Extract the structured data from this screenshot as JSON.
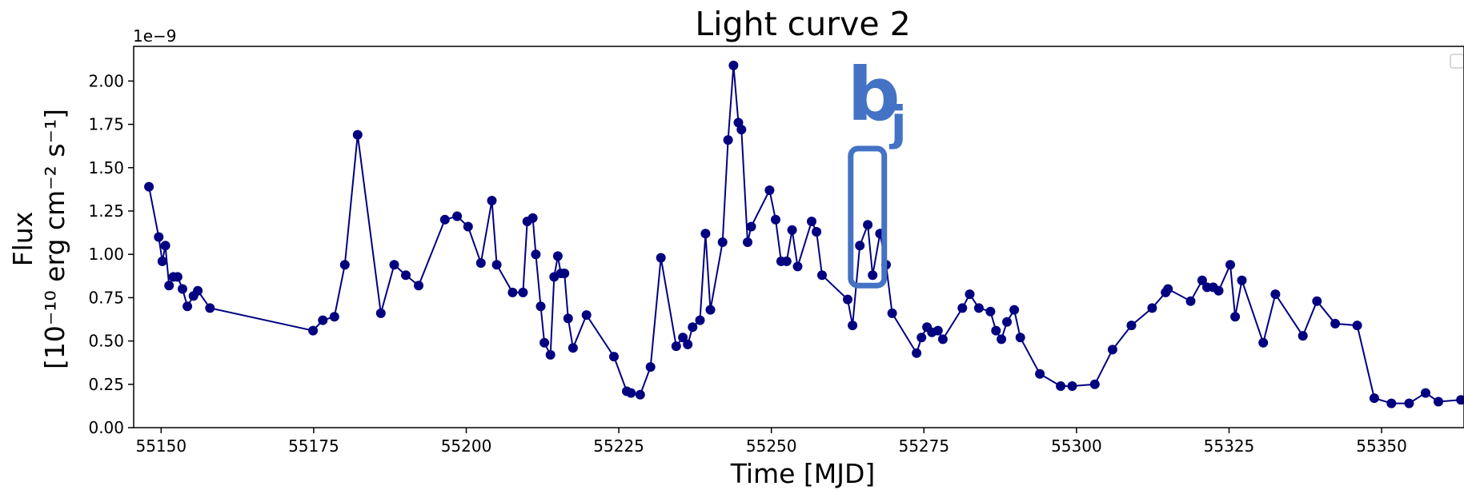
{
  "chart_data": {
    "type": "line",
    "title": "Light curve 2",
    "xlabel": "Time [MJD]",
    "ylabel_line1": "Flux",
    "ylabel_line2": "[10⁻¹⁰ erg cm⁻² s⁻¹]",
    "y_offset_label": "1e−9",
    "xlim": [
      55145.5,
      55363.5
    ],
    "ylim": [
      0.0,
      2.2
    ],
    "xticks": [
      55150,
      55175,
      55200,
      55225,
      55250,
      55275,
      55300,
      55325,
      55350
    ],
    "xtick_labels": [
      "55150",
      "55175",
      "55200",
      "55225",
      "55250",
      "55275",
      "55300",
      "55325",
      "55350"
    ],
    "yticks": [
      0.0,
      0.25,
      0.5,
      0.75,
      1.0,
      1.25,
      1.5,
      1.75,
      2.0
    ],
    "ytick_labels": [
      "0.00",
      "0.25",
      "0.50",
      "0.75",
      "1.00",
      "1.25",
      "1.50",
      "1.75",
      "2.00"
    ],
    "grid": false,
    "legend": "top-right",
    "series_color": "#000080",
    "annotation_color": "#4472c4",
    "annotation": {
      "letter": "b",
      "subscript": "j",
      "x_range": [
        55263,
        55268.5
      ],
      "y_range": [
        0.82,
        1.61
      ]
    },
    "series": [
      {
        "x": [
          55148.0,
          55149.6,
          55150.2,
          55150.7,
          55151.3,
          55152.0,
          55152.7,
          55153.5,
          55154.3,
          55155.3,
          55156.0,
          55158.0,
          55174.9,
          55176.5,
          55178.4,
          55180.1,
          55182.2,
          55186.0,
          55188.2,
          55190.1,
          55192.2,
          55196.5,
          55198.5,
          55200.3,
          55202.4,
          55204.2,
          55205.0,
          55207.6,
          55209.3,
          55210.0,
          55210.9,
          55211.4,
          55212.2,
          55212.8,
          55213.8,
          55214.4,
          55215.0,
          55215.5,
          55216.1,
          55216.7,
          55217.5,
          55219.7,
          55224.2,
          55226.3,
          55227.0,
          55228.5,
          55230.2,
          55231.9,
          55234.4,
          55235.5,
          55236.3,
          55237.1,
          55238.3,
          55239.2,
          55240.0,
          55242.0,
          55242.9,
          55243.8,
          55244.6,
          55245.1,
          55246.1,
          55246.7,
          55249.7,
          55250.7,
          55251.6,
          55252.5,
          55253.4,
          55254.3,
          55256.6,
          55257.4,
          55258.3,
          55262.5,
          55263.3,
          55264.5,
          55265.8,
          55266.6,
          55267.8,
          55268.8,
          55269.8,
          55273.8,
          55274.6,
          55275.5,
          55276.3,
          55277.3,
          55278.1,
          55281.3,
          55282.5,
          55284.0,
          55285.9,
          55286.8,
          55287.7,
          55288.6,
          55289.8,
          55290.8,
          55294.0,
          55297.4,
          55299.3,
          55303.0,
          55305.9,
          55309.0,
          55312.4,
          55314.6,
          55315.0,
          55318.7,
          55320.6,
          55321.4,
          55322.4,
          55323.3,
          55325.2,
          55326.0,
          55327.1,
          55330.6,
          55332.6,
          55337.1,
          55339.4,
          55342.4,
          55346.0,
          55348.8,
          55351.6,
          55354.5,
          55357.2,
          55359.3,
          55363.0
        ],
        "y": [
          1.39,
          1.1,
          0.96,
          1.05,
          0.82,
          0.87,
          0.87,
          0.8,
          0.7,
          0.76,
          0.79,
          0.69,
          0.56,
          0.62,
          0.64,
          0.94,
          1.69,
          0.66,
          0.94,
          0.88,
          0.82,
          1.2,
          1.22,
          1.16,
          0.95,
          1.31,
          0.94,
          0.78,
          0.78,
          1.19,
          1.21,
          1.0,
          0.7,
          0.49,
          0.42,
          0.87,
          0.99,
          0.89,
          0.89,
          0.63,
          0.46,
          0.65,
          0.41,
          0.21,
          0.2,
          0.19,
          0.35,
          0.98,
          0.47,
          0.52,
          0.48,
          0.58,
          0.62,
          1.12,
          0.68,
          1.07,
          1.66,
          2.09,
          1.76,
          1.72,
          1.07,
          1.16,
          1.37,
          1.2,
          0.96,
          0.96,
          1.14,
          0.93,
          1.19,
          1.13,
          0.88,
          0.74,
          0.59,
          1.05,
          1.17,
          0.88,
          1.12,
          0.94,
          0.66,
          0.43,
          0.52,
          0.58,
          0.55,
          0.56,
          0.51,
          0.69,
          0.77,
          0.69,
          0.67,
          0.56,
          0.51,
          0.61,
          0.68,
          0.52,
          0.31,
          0.24,
          0.24,
          0.25,
          0.45,
          0.59,
          0.69,
          0.78,
          0.8,
          0.73,
          0.85,
          0.81,
          0.81,
          0.79,
          0.94,
          0.64,
          0.85,
          0.49,
          0.77,
          0.53,
          0.73,
          0.6,
          0.59,
          0.17,
          0.14,
          0.14,
          0.2,
          0.15,
          0.16
        ]
      }
    ]
  }
}
